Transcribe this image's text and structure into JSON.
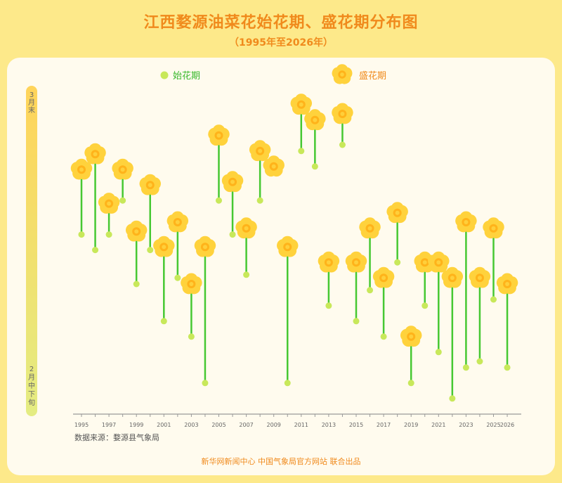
{
  "header": {
    "title": "江西婺源油菜花始花期、盛花期分布图",
    "subtitle": "（1995年至2026年）"
  },
  "legend": {
    "start_label": "始花期",
    "peak_label": "盛花期"
  },
  "footer": {
    "source": "数据来源：婺源县气象局",
    "credit": "新华网新闻中心  中国气象局官方网站  联合出品"
  },
  "colors": {
    "stem": "#46c832",
    "start_dot": "#c8e85a",
    "flower": "#ffd23c",
    "flower_center": "#ffb31a",
    "title": "#f08a1c",
    "legend_text": "#38b82b",
    "axis": "#999999"
  },
  "chart_data": {
    "type": "dumbbell",
    "title": "江西婺源油菜花始花期、盛花期分布图",
    "subtitle": "（1995年至2026年）",
    "y_axis": {
      "top_label": "3月末",
      "bottom_label": "2月中下旬",
      "scale": "0 = 2月中下旬, 100 = 3月末"
    },
    "x_tick_labels": [
      "1995",
      "1997",
      "1999",
      "2001",
      "2003",
      "2005",
      "2007",
      "2009",
      "2011",
      "2013",
      "2015",
      "2017",
      "2019",
      "2021",
      "2023",
      "2025",
      "2026"
    ],
    "series": [
      {
        "name": "始花期",
        "marker": "dot"
      },
      {
        "name": "盛花期",
        "marker": "flower"
      }
    ],
    "points": [
      {
        "year": 1995,
        "start": 56,
        "peak": 77
      },
      {
        "year": 1996,
        "start": 51,
        "peak": 82
      },
      {
        "year": 1997,
        "start": 56,
        "peak": 66
      },
      {
        "year": 1998,
        "start": 67,
        "peak": 77
      },
      {
        "year": 1999,
        "start": 40,
        "peak": 57
      },
      {
        "year": 2000,
        "start": 51,
        "peak": 72
      },
      {
        "year": 2001,
        "start": 28,
        "peak": 52
      },
      {
        "year": 2002,
        "start": 42,
        "peak": 60
      },
      {
        "year": 2003,
        "start": 23,
        "peak": 40
      },
      {
        "year": 2004,
        "start": 8,
        "peak": 52
      },
      {
        "year": 2005,
        "start": 67,
        "peak": 88
      },
      {
        "year": 2006,
        "start": 56,
        "peak": 73
      },
      {
        "year": 2007,
        "start": 43,
        "peak": 58
      },
      {
        "year": 2008,
        "start": 67,
        "peak": 83
      },
      {
        "year": 2009,
        "peak": 78
      },
      {
        "year": 2010,
        "start": 8,
        "peak": 52
      },
      {
        "year": 2011,
        "start": 83,
        "peak": 98
      },
      {
        "year": 2012,
        "start": 78,
        "peak": 93
      },
      {
        "year": 2014,
        "start": 85,
        "peak": 95
      },
      {
        "year": 2013,
        "start": 33,
        "peak": 47
      },
      {
        "year": 2015,
        "start": 28,
        "peak": 47
      },
      {
        "year": 2016,
        "start": 38,
        "peak": 58
      },
      {
        "year": 2017,
        "start": 23,
        "peak": 42
      },
      {
        "year": 2018,
        "start": 47,
        "peak": 63
      },
      {
        "year": 2019,
        "start": 8,
        "peak": 23
      },
      {
        "year": 2020,
        "start": 33,
        "peak": 47
      },
      {
        "year": 2021,
        "start": 18,
        "peak": 47
      },
      {
        "year": 2022,
        "start": 3,
        "peak": 42
      },
      {
        "year": 2023,
        "start": 13,
        "peak": 60
      },
      {
        "year": 2024,
        "start": 15,
        "peak": 42
      },
      {
        "year": 2025,
        "start": 35,
        "peak": 58
      },
      {
        "year": 2026,
        "start": 13,
        "peak": 40
      }
    ]
  }
}
